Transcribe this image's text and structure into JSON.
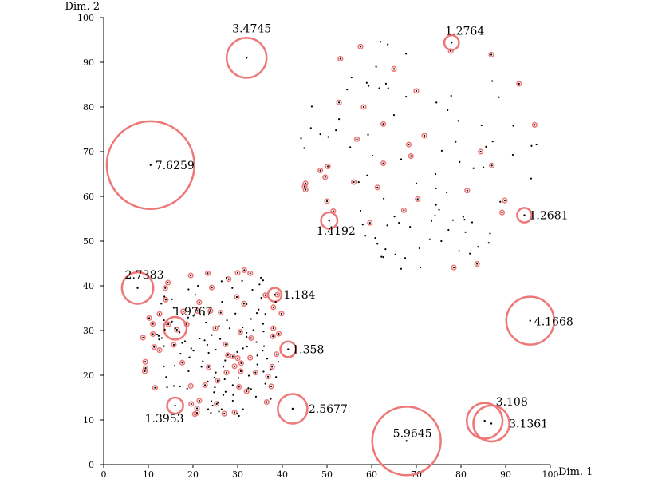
{
  "chart_data": {
    "type": "scatter",
    "xlabel": "Dim. 1",
    "ylabel": "Dim. 2",
    "xlim": [
      0,
      100
    ],
    "ylim": [
      0,
      100
    ],
    "xticks": [
      "0",
      "10",
      "20",
      "30",
      "40",
      "50",
      "60",
      "70",
      "80",
      "90",
      "100"
    ],
    "yticks": [
      "0",
      "10",
      "20",
      "30",
      "40",
      "50",
      "60",
      "70",
      "80",
      "90",
      "100"
    ],
    "grid": false,
    "colors": {
      "points": "#000000",
      "circles": "#ee7777"
    },
    "annotated_points": [
      {
        "label": "3.4745",
        "x": 32.0,
        "y": 91.0,
        "score": 3.4745
      },
      {
        "label": "1.2764",
        "x": 77.9,
        "y": 94.4,
        "score": 1.2764
      },
      {
        "label": "7.6259",
        "x": 10.5,
        "y": 67.0,
        "score": 7.6259
      },
      {
        "label": "1.4192",
        "x": 50.5,
        "y": 54.6,
        "score": 1.4192
      },
      {
        "label": "1.2681",
        "x": 94.2,
        "y": 55.8,
        "score": 1.2681
      },
      {
        "label": "2.7383",
        "x": 7.6,
        "y": 39.5,
        "score": 2.7383
      },
      {
        "label": "1.184",
        "x": 38.3,
        "y": 38.0,
        "score": 1.184
      },
      {
        "label": "1.9767",
        "x": 16.0,
        "y": 30.5,
        "score": 1.9767
      },
      {
        "label": "4.1668",
        "x": 95.5,
        "y": 32.2,
        "score": 4.1668
      },
      {
        "label": "1.358",
        "x": 41.3,
        "y": 25.8,
        "score": 1.358
      },
      {
        "label": "1.3953",
        "x": 16.0,
        "y": 13.2,
        "score": 1.3953
      },
      {
        "label": "2.5677",
        "x": 42.3,
        "y": 12.5,
        "score": 2.5677
      },
      {
        "label": "3.108",
        "x": 85.3,
        "y": 9.8,
        "score": 3.108
      },
      {
        "label": "3.1361",
        "x": 86.8,
        "y": 9.2,
        "score": 3.1361
      },
      {
        "label": "5.9645",
        "x": 67.8,
        "y": 5.3,
        "score": 5.9645
      }
    ],
    "circled_points": [
      [
        53.0,
        90.8
      ],
      [
        57.5,
        93.5
      ],
      [
        65.0,
        88.5
      ],
      [
        70.0,
        83.6
      ],
      [
        77.7,
        92.5
      ],
      [
        86.8,
        91.7
      ],
      [
        93.0,
        85.2
      ],
      [
        52.7,
        81.0
      ],
      [
        58.2,
        80.0
      ],
      [
        62.6,
        76.2
      ],
      [
        71.8,
        73.6
      ],
      [
        84.4,
        70.0
      ],
      [
        96.5,
        76.0
      ],
      [
        56.7,
        72.8
      ],
      [
        68.3,
        71.6
      ],
      [
        68.8,
        69.0
      ],
      [
        50.2,
        66.7
      ],
      [
        48.5,
        65.8
      ],
      [
        49.6,
        64.3
      ],
      [
        62.6,
        67.4
      ],
      [
        86.9,
        66.9
      ],
      [
        45.2,
        62.9
      ],
      [
        45.0,
        62.2
      ],
      [
        45.2,
        61.5
      ],
      [
        56.0,
        63.2
      ],
      [
        61.3,
        62.0
      ],
      [
        81.4,
        61.3
      ],
      [
        50.0,
        58.9
      ],
      [
        70.3,
        59.4
      ],
      [
        89.8,
        59.1
      ],
      [
        51.4,
        56.7
      ],
      [
        67.2,
        56.9
      ],
      [
        89.2,
        56.4
      ],
      [
        59.6,
        54.1
      ],
      [
        78.4,
        44.1
      ],
      [
        83.6,
        44.9
      ],
      [
        23.3,
        42.8
      ],
      [
        31.5,
        43.5
      ],
      [
        30.0,
        42.9
      ],
      [
        32.8,
        42.8
      ],
      [
        19.5,
        42.3
      ],
      [
        28.0,
        41.5
      ],
      [
        14.4,
        40.7
      ],
      [
        13.8,
        39.5
      ],
      [
        24.2,
        39.6
      ],
      [
        29.8,
        37.5
      ],
      [
        36.2,
        37.9
      ],
      [
        38.9,
        38.0
      ],
      [
        13.9,
        36.9
      ],
      [
        21.4,
        36.3
      ],
      [
        31.4,
        36.0
      ],
      [
        38.0,
        35.2
      ],
      [
        17.8,
        34.3
      ],
      [
        21.0,
        34.4
      ],
      [
        23.9,
        34.4
      ],
      [
        12.5,
        33.7
      ],
      [
        10.2,
        32.8
      ],
      [
        26.2,
        34.0
      ],
      [
        39.8,
        33.8
      ],
      [
        11.0,
        31.5
      ],
      [
        18.6,
        31.4
      ],
      [
        14.5,
        31.4
      ],
      [
        16.4,
        30.2
      ],
      [
        25.0,
        30.5
      ],
      [
        30.6,
        29.7
      ],
      [
        38.0,
        30.5
      ],
      [
        11.0,
        29.2
      ],
      [
        8.8,
        28.4
      ],
      [
        33.0,
        28.3
      ],
      [
        39.2,
        29.3
      ],
      [
        37.9,
        28.7
      ],
      [
        15.7,
        26.8
      ],
      [
        27.3,
        26.9
      ],
      [
        11.3,
        26.3
      ],
      [
        12.5,
        25.6
      ],
      [
        27.8,
        24.5
      ],
      [
        38.7,
        24.7
      ],
      [
        28.9,
        24.2
      ],
      [
        30.0,
        23.8
      ],
      [
        32.8,
        23.9
      ],
      [
        9.3,
        23.0
      ],
      [
        17.6,
        22.8
      ],
      [
        30.8,
        22.7
      ],
      [
        23.5,
        21.8
      ],
      [
        29.3,
        22.0
      ],
      [
        37.7,
        21.9
      ],
      [
        9.4,
        21.6
      ],
      [
        9.2,
        20.9
      ],
      [
        30.7,
        20.9
      ],
      [
        27.5,
        20.6
      ],
      [
        34.0,
        20.6
      ],
      [
        36.8,
        19.7
      ],
      [
        25.5,
        18.8
      ],
      [
        22.7,
        17.8
      ],
      [
        11.5,
        17.2
      ],
      [
        19.5,
        17.6
      ],
      [
        30.3,
        17.4
      ],
      [
        37.5,
        17.5
      ],
      [
        32.0,
        16.4
      ],
      [
        21.4,
        14.3
      ],
      [
        36.5,
        14.0
      ],
      [
        19.6,
        13.6
      ],
      [
        25.3,
        13.6
      ],
      [
        20.9,
        12.6
      ],
      [
        29.3,
        11.7
      ],
      [
        27.0,
        11.4
      ],
      [
        20.9,
        11.6
      ],
      [
        20.4,
        11.3
      ]
    ],
    "plain_points": [
      [
        62.0,
        94.6
      ],
      [
        63.6,
        94.0
      ],
      [
        67.7,
        91.9
      ],
      [
        61.0,
        89.0
      ],
      [
        55.5,
        86.6
      ],
      [
        63.2,
        85.2
      ],
      [
        59.3,
        84.7
      ],
      [
        61.7,
        84.2
      ],
      [
        63.7,
        84.2
      ],
      [
        58.9,
        85.4
      ],
      [
        67.7,
        82.3
      ],
      [
        74.5,
        81.0
      ],
      [
        87.0,
        85.8
      ],
      [
        88.5,
        82.2
      ],
      [
        77.8,
        82.5
      ],
      [
        54.5,
        83.9
      ],
      [
        46.6,
        80.1
      ],
      [
        77.0,
        79.3
      ],
      [
        79.4,
        76.9
      ],
      [
        84.6,
        75.9
      ],
      [
        52.7,
        77.3
      ],
      [
        91.7,
        75.8
      ],
      [
        65.0,
        78.2
      ],
      [
        59.2,
        73.8
      ],
      [
        46.4,
        75.3
      ],
      [
        44.2,
        73.0
      ],
      [
        48.5,
        73.9
      ],
      [
        52.0,
        74.8
      ],
      [
        50.3,
        73.3
      ],
      [
        78.8,
        72.2
      ],
      [
        87.1,
        72.3
      ],
      [
        96.9,
        71.6
      ],
      [
        95.8,
        71.3
      ],
      [
        85.6,
        71.1
      ],
      [
        44.9,
        70.8
      ],
      [
        55.2,
        71.0
      ],
      [
        75.7,
        70.2
      ],
      [
        91.6,
        69.3
      ],
      [
        60.2,
        69.1
      ],
      [
        66.6,
        68.3
      ],
      [
        79.7,
        67.7
      ],
      [
        82.8,
        66.3
      ],
      [
        85.0,
        66.5
      ],
      [
        74.3,
        65.0
      ],
      [
        59.0,
        64.7
      ],
      [
        57.1,
        63.2
      ],
      [
        95.7,
        64.0
      ],
      [
        70.0,
        62.9
      ],
      [
        74.4,
        61.8
      ],
      [
        76.8,
        60.9
      ],
      [
        62.7,
        59.5
      ],
      [
        74.4,
        58.1
      ],
      [
        88.8,
        58.8
      ],
      [
        75.1,
        57.0
      ],
      [
        57.5,
        56.8
      ],
      [
        74.2,
        55.7
      ],
      [
        65.1,
        55.5
      ],
      [
        80.5,
        55.4
      ],
      [
        80.8,
        54.8
      ],
      [
        82.5,
        54.2
      ],
      [
        78.2,
        54.7
      ],
      [
        73.4,
        54.5
      ],
      [
        66.1,
        54.1
      ],
      [
        58.0,
        53.7
      ],
      [
        63.5,
        53.5
      ],
      [
        68.6,
        53.2
      ],
      [
        77.2,
        52.5
      ],
      [
        81.0,
        52.0
      ],
      [
        86.5,
        51.7
      ],
      [
        58.6,
        51.2
      ],
      [
        60.8,
        50.7
      ],
      [
        73.0,
        50.4
      ],
      [
        61.3,
        49.4
      ],
      [
        75.6,
        50.0
      ],
      [
        86.2,
        49.6
      ],
      [
        70.7,
        48.4
      ],
      [
        82.0,
        47.2
      ],
      [
        83.8,
        48.7
      ],
      [
        65.3,
        47.0
      ],
      [
        79.6,
        47.8
      ],
      [
        63.1,
        48.2
      ],
      [
        62.6,
        46.4
      ],
      [
        62.2,
        46.5
      ],
      [
        67.5,
        46.2
      ],
      [
        70.9,
        44.1
      ],
      [
        66.6,
        43.8
      ],
      [
        27.5,
        41.8
      ],
      [
        26.4,
        41.0
      ],
      [
        35.2,
        41.8
      ],
      [
        35.7,
        41.2
      ],
      [
        31.0,
        41.1
      ],
      [
        34.9,
        40.3
      ],
      [
        21.1,
        40.0
      ],
      [
        19.0,
        39.2
      ],
      [
        28.8,
        39.5
      ],
      [
        33.3,
        39.1
      ],
      [
        20.5,
        38.0
      ],
      [
        13.6,
        37.6
      ],
      [
        35.3,
        37.3
      ],
      [
        38.5,
        36.4
      ],
      [
        15.3,
        37.0
      ],
      [
        12.9,
        36.0
      ],
      [
        26.5,
        36.4
      ],
      [
        32.0,
        35.9
      ],
      [
        15.7,
        35.1
      ],
      [
        34.7,
        34.7
      ],
      [
        22.5,
        33.5
      ],
      [
        20.1,
        33.3
      ],
      [
        29.5,
        33.8
      ],
      [
        18.9,
        32.9
      ],
      [
        33.0,
        32.6
      ],
      [
        34.3,
        33.9
      ],
      [
        36.2,
        33.7
      ],
      [
        13.5,
        32.3
      ],
      [
        15.3,
        32.0
      ],
      [
        22.9,
        31.8
      ],
      [
        27.6,
        32.3
      ],
      [
        35.7,
        31.5
      ],
      [
        25.8,
        31.0
      ],
      [
        28.2,
        30.5
      ],
      [
        31.1,
        30.7
      ],
      [
        33.5,
        30.1
      ],
      [
        13.7,
        30.2
      ],
      [
        17.0,
        29.6
      ],
      [
        32.0,
        29.5
      ],
      [
        35.8,
        29.8
      ],
      [
        12.0,
        29.1
      ],
      [
        12.3,
        28.8
      ],
      [
        24.2,
        29.0
      ],
      [
        13.0,
        28.3
      ],
      [
        21.5,
        28.2
      ],
      [
        12.4,
        28.0
      ],
      [
        22.6,
        27.8
      ],
      [
        18.2,
        27.6
      ],
      [
        26.1,
        28.1
      ],
      [
        17.6,
        27.2
      ],
      [
        32.0,
        28.6
      ],
      [
        34.2,
        27.4
      ],
      [
        23.2,
        26.8
      ],
      [
        35.9,
        26.5
      ],
      [
        13.5,
        26.5
      ],
      [
        19.6,
        26.0
      ],
      [
        32.1,
        26.4
      ],
      [
        31.2,
        26.0
      ],
      [
        20.1,
        25.5
      ],
      [
        25.1,
        25.7
      ],
      [
        23.5,
        25.0
      ],
      [
        35.6,
        25.5
      ],
      [
        17.2,
        24.8
      ],
      [
        29.9,
        25.2
      ],
      [
        34.4,
        24.4
      ],
      [
        19.2,
        24.0
      ],
      [
        36.6,
        23.7
      ],
      [
        27.2,
        23.3
      ],
      [
        22.2,
        23.1
      ],
      [
        39.1,
        23.0
      ],
      [
        13.5,
        22.0
      ],
      [
        15.9,
        22.1
      ],
      [
        21.9,
        21.9
      ],
      [
        26.8,
        21.9
      ],
      [
        34.4,
        22.4
      ],
      [
        37.4,
        21.2
      ],
      [
        19.0,
        20.9
      ],
      [
        25.1,
        20.6
      ],
      [
        35.8,
        20.8
      ],
      [
        32.5,
        19.9
      ],
      [
        14.0,
        19.6
      ],
      [
        24.8,
        19.5
      ],
      [
        27.1,
        19.1
      ],
      [
        30.2,
        19.4
      ],
      [
        38.6,
        19.6
      ],
      [
        23.3,
        18.6
      ],
      [
        36.2,
        18.1
      ],
      [
        17.1,
        17.5
      ],
      [
        15.7,
        17.6
      ],
      [
        14.2,
        17.3
      ],
      [
        28.9,
        17.8
      ],
      [
        18.7,
        17.0
      ],
      [
        24.9,
        17.3
      ],
      [
        33.0,
        16.9
      ],
      [
        32.4,
        17.1
      ],
      [
        27.3,
        16.3
      ],
      [
        24.7,
        16.2
      ],
      [
        26.8,
        15.6
      ],
      [
        29.0,
        15.6
      ],
      [
        34.1,
        15.2
      ],
      [
        37.4,
        14.7
      ],
      [
        24.1,
        14.2
      ],
      [
        28.9,
        14.3
      ],
      [
        25.6,
        13.9
      ],
      [
        24.4,
        13.2
      ],
      [
        23.4,
        12.4
      ],
      [
        26.4,
        12.4
      ],
      [
        31.2,
        12.4
      ],
      [
        25.8,
        11.9
      ],
      [
        24.0,
        11.6
      ],
      [
        29.9,
        11.4
      ],
      [
        30.3,
        10.9
      ]
    ]
  }
}
